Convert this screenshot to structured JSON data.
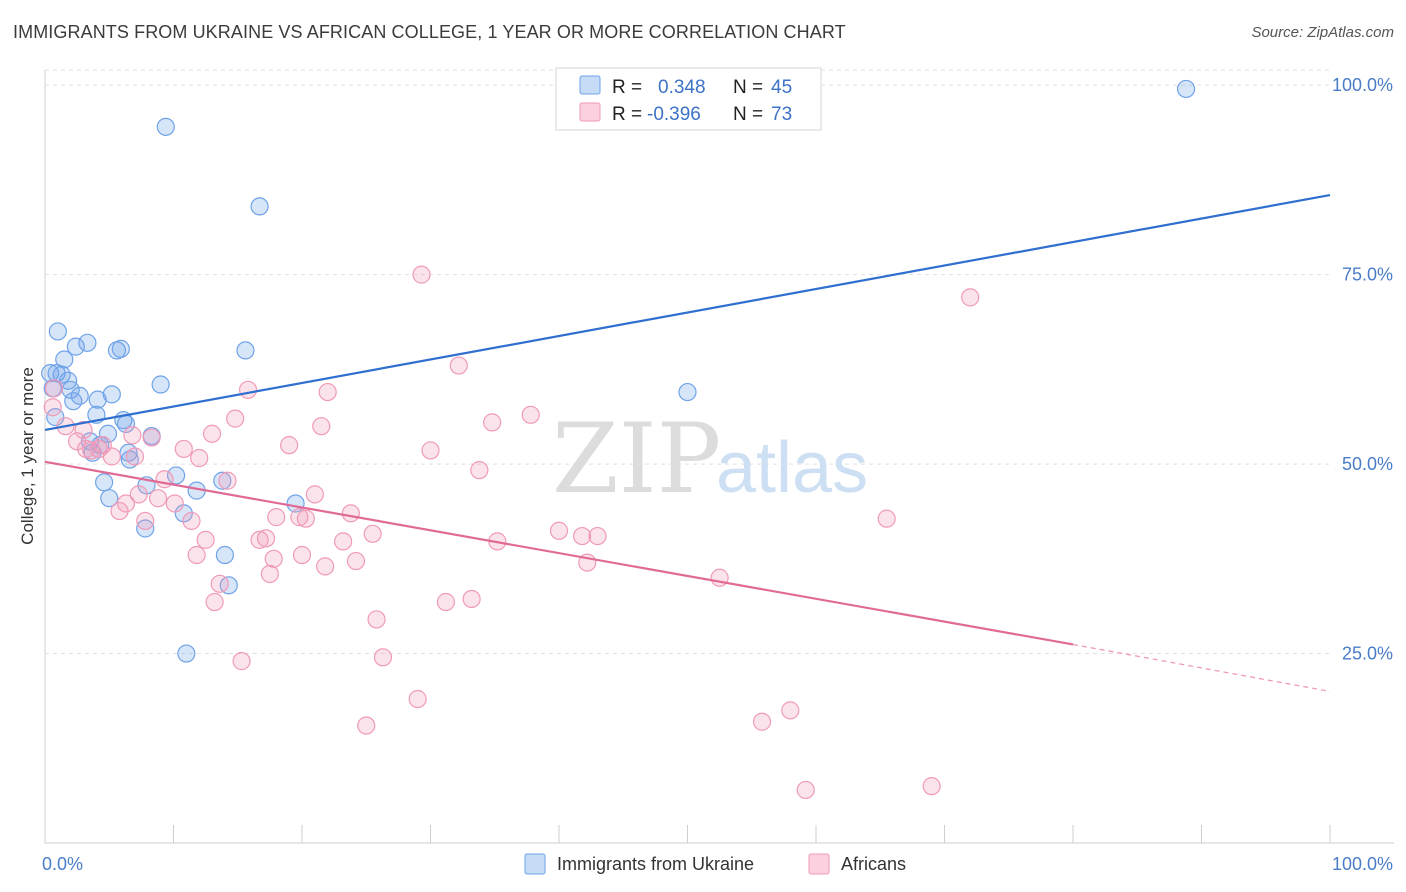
{
  "header": {
    "title": "IMMIGRANTS FROM UKRAINE VS AFRICAN COLLEGE, 1 YEAR OR MORE CORRELATION CHART",
    "source": "Source: ZipAtlas.com"
  },
  "watermark": {
    "zip": "ZIP",
    "atlas": "atlas"
  },
  "legend": {
    "rows": [
      {
        "r_label": "R =",
        "r_value": "0.348",
        "n_label": "N =",
        "n_value": "45",
        "color": "#6fa3e8"
      },
      {
        "r_label": "R =",
        "r_value": "-0.396",
        "n_label": "N =",
        "n_value": "73",
        "color": "#f09ab8"
      }
    ]
  },
  "bottom_legend": {
    "items": [
      {
        "label": "Immigrants from Ukraine",
        "color": "#6fa3e8"
      },
      {
        "label": "Africans",
        "color": "#f09ab8"
      }
    ]
  },
  "chart_data": {
    "type": "scatter",
    "title": "IMMIGRANTS FROM UKRAINE VS AFRICAN COLLEGE, 1 YEAR OR MORE CORRELATION CHART",
    "xlabel": "",
    "ylabel": "College, 1 year or more",
    "xlim": [
      0,
      100
    ],
    "ylim": [
      0,
      102
    ],
    "x_tick_labels": [
      "0.0%",
      "100.0%"
    ],
    "y_ticks": [
      25,
      50,
      75,
      100
    ],
    "y_tick_labels": [
      "25.0%",
      "50.0%",
      "75.0%",
      "100.0%"
    ],
    "grid": true,
    "legend_position": "top-center",
    "series": [
      {
        "name": "Immigrants from Ukraine",
        "color": "#6fa3e8",
        "trend": {
          "x0": 0,
          "y0": 54.5,
          "x1": 100,
          "y1": 85.5,
          "dashed_from": null
        },
        "points": [
          [
            0.4,
            62.0
          ],
          [
            0.6,
            60.0
          ],
          [
            0.8,
            56.2
          ],
          [
            1.0,
            67.5
          ],
          [
            1.3,
            61.8
          ],
          [
            1.5,
            63.8
          ],
          [
            1.8,
            61.0
          ],
          [
            2.0,
            59.8
          ],
          [
            2.2,
            58.3
          ],
          [
            2.4,
            65.5
          ],
          [
            2.7,
            59.0
          ],
          [
            3.3,
            66.0
          ],
          [
            3.5,
            53.0
          ],
          [
            3.7,
            51.5
          ],
          [
            4.0,
            56.5
          ],
          [
            4.1,
            58.5
          ],
          [
            4.3,
            52.5
          ],
          [
            4.6,
            47.6
          ],
          [
            4.9,
            54.0
          ],
          [
            5.0,
            45.5
          ],
          [
            5.2,
            59.2
          ],
          [
            5.6,
            65.0
          ],
          [
            5.9,
            65.2
          ],
          [
            6.1,
            55.8
          ],
          [
            6.3,
            55.3
          ],
          [
            6.5,
            51.5
          ],
          [
            6.6,
            50.6
          ],
          [
            7.8,
            41.5
          ],
          [
            7.9,
            47.2
          ],
          [
            8.3,
            53.7
          ],
          [
            9.0,
            60.5
          ],
          [
            9.4,
            94.5
          ],
          [
            10.2,
            48.5
          ],
          [
            10.8,
            43.5
          ],
          [
            11.0,
            25.0
          ],
          [
            11.8,
            46.5
          ],
          [
            13.8,
            47.8
          ],
          [
            14.0,
            38.0
          ],
          [
            14.3,
            34.0
          ],
          [
            15.6,
            65.0
          ],
          [
            16.7,
            84.0
          ],
          [
            19.5,
            44.8
          ],
          [
            50.0,
            59.5
          ],
          [
            88.8,
            99.5
          ],
          [
            0.9,
            62.0
          ]
        ]
      },
      {
        "name": "Africans",
        "color": "#f09ab8",
        "trend": {
          "x0": 0,
          "y0": 50.3,
          "x1": 80,
          "y1": 26.2,
          "dashed_to_x": 100,
          "dashed_to_y": 20.0
        },
        "points": [
          [
            0.6,
            57.5
          ],
          [
            0.7,
            60.0
          ],
          [
            1.6,
            55.0
          ],
          [
            2.5,
            53.0
          ],
          [
            3.0,
            54.5
          ],
          [
            3.2,
            52.0
          ],
          [
            3.6,
            51.8
          ],
          [
            4.2,
            52.0
          ],
          [
            4.5,
            52.5
          ],
          [
            5.2,
            51.0
          ],
          [
            5.8,
            43.8
          ],
          [
            6.3,
            44.8
          ],
          [
            6.8,
            53.8
          ],
          [
            7.0,
            51.0
          ],
          [
            7.3,
            46.0
          ],
          [
            7.8,
            42.5
          ],
          [
            8.3,
            53.5
          ],
          [
            8.8,
            45.5
          ],
          [
            9.3,
            48.0
          ],
          [
            10.1,
            44.8
          ],
          [
            10.8,
            52.0
          ],
          [
            11.4,
            42.5
          ],
          [
            11.8,
            38.0
          ],
          [
            12.0,
            50.8
          ],
          [
            12.5,
            40.0
          ],
          [
            13.0,
            54.0
          ],
          [
            13.2,
            31.8
          ],
          [
            13.6,
            34.2
          ],
          [
            14.2,
            47.8
          ],
          [
            14.8,
            56.0
          ],
          [
            15.3,
            24.0
          ],
          [
            15.8,
            59.8
          ],
          [
            16.7,
            40.0
          ],
          [
            17.2,
            40.2
          ],
          [
            17.5,
            35.5
          ],
          [
            17.8,
            37.5
          ],
          [
            18.0,
            43.0
          ],
          [
            19.0,
            52.5
          ],
          [
            19.8,
            43.0
          ],
          [
            20.0,
            38.0
          ],
          [
            20.3,
            42.8
          ],
          [
            21.0,
            46.0
          ],
          [
            21.5,
            55.0
          ],
          [
            21.8,
            36.5
          ],
          [
            22.0,
            59.5
          ],
          [
            23.2,
            39.8
          ],
          [
            23.8,
            43.5
          ],
          [
            24.2,
            37.2
          ],
          [
            25.0,
            15.5
          ],
          [
            25.5,
            40.8
          ],
          [
            25.8,
            29.5
          ],
          [
            26.3,
            24.5
          ],
          [
            29.0,
            19.0
          ],
          [
            29.3,
            75.0
          ],
          [
            30.0,
            51.8
          ],
          [
            31.2,
            31.8
          ],
          [
            32.2,
            63.0
          ],
          [
            33.2,
            32.2
          ],
          [
            33.8,
            49.2
          ],
          [
            34.8,
            55.5
          ],
          [
            35.2,
            39.8
          ],
          [
            37.8,
            56.5
          ],
          [
            40.0,
            41.2
          ],
          [
            41.8,
            40.5
          ],
          [
            42.2,
            37.0
          ],
          [
            43.0,
            40.5
          ],
          [
            52.5,
            35.0
          ],
          [
            55.8,
            16.0
          ],
          [
            58.0,
            17.5
          ],
          [
            59.2,
            7.0
          ],
          [
            65.5,
            42.8
          ],
          [
            69.0,
            7.5
          ],
          [
            72.0,
            72.0
          ]
        ]
      }
    ]
  }
}
